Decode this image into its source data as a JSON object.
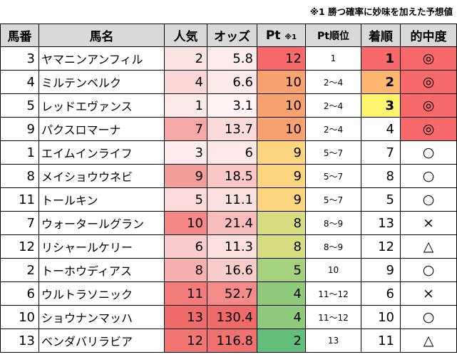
{
  "note": "※1 勝つ確率に妙味を加えた予想値",
  "headers": {
    "num": "馬番",
    "name": "馬名",
    "pop": "人気",
    "odds": "オッズ",
    "pt_main": "Pt",
    "pt_sup": "※1",
    "rank": "Pt順位",
    "finish": "着順",
    "hit": "的中度"
  },
  "rows": [
    {
      "num": "3",
      "name": "ヤマニンアンフィル",
      "pop": "2",
      "odds": "5.8",
      "pt": "12",
      "rank": "1",
      "finish": "1",
      "hit": "◎"
    },
    {
      "num": "4",
      "name": "ミルテンベルク",
      "pop": "4",
      "odds": "6.6",
      "pt": "10",
      "rank": "2～4",
      "finish": "2",
      "hit": "◎"
    },
    {
      "num": "5",
      "name": "レッドエヴァンス",
      "pop": "1",
      "odds": "3.1",
      "pt": "10",
      "rank": "2～4",
      "finish": "3",
      "hit": "◎"
    },
    {
      "num": "9",
      "name": "パクスロマーナ",
      "pop": "7",
      "odds": "13.7",
      "pt": "10",
      "rank": "2～4",
      "finish": "4",
      "hit": "◎"
    },
    {
      "num": "1",
      "name": "エイムインライフ",
      "pop": "3",
      "odds": "6",
      "pt": "9",
      "rank": "5～7",
      "finish": "7",
      "hit": "○"
    },
    {
      "num": "8",
      "name": "メイショウウネビ",
      "pop": "9",
      "odds": "18.5",
      "pt": "9",
      "rank": "5～7",
      "finish": "8",
      "hit": "○"
    },
    {
      "num": "11",
      "name": "トールキン",
      "pop": "5",
      "odds": "11.1",
      "pt": "9",
      "rank": "5～7",
      "finish": "5",
      "hit": "○"
    },
    {
      "num": "7",
      "name": "ウォータールグラン",
      "pop": "10",
      "odds": "21.4",
      "pt": "8",
      "rank": "8～9",
      "finish": "13",
      "hit": "×"
    },
    {
      "num": "12",
      "name": "リシャールケリー",
      "pop": "6",
      "odds": "11.3",
      "pt": "8",
      "rank": "8～9",
      "finish": "12",
      "hit": "△"
    },
    {
      "num": "2",
      "name": "トーホウディアス",
      "pop": "8",
      "odds": "16.6",
      "pt": "5",
      "rank": "10",
      "finish": "9",
      "hit": "○"
    },
    {
      "num": "6",
      "name": "ウルトラソニック",
      "pop": "11",
      "odds": "52.7",
      "pt": "4",
      "rank": "11～12",
      "finish": "6",
      "hit": "×"
    },
    {
      "num": "10",
      "name": "ショウナンマッハ",
      "pop": "13",
      "odds": "130.4",
      "pt": "4",
      "rank": "11～12",
      "finish": "10",
      "hit": "○"
    },
    {
      "num": "13",
      "name": "ベンダバリラビア",
      "pop": "12",
      "odds": "116.8",
      "pt": "2",
      "rank": "13",
      "finish": "11",
      "hit": "△"
    }
  ],
  "colors": {
    "header_bg": "#d9d9d9",
    "pop": [
      "#fbe3e3",
      "#fbd6d6",
      "#fbe9e9",
      "#f6a8a6",
      "#fdecec",
      "#f49e9c",
      "#fadcdc",
      "#f38886",
      "#f9cdcd",
      "#f6b1af",
      "#f17c7a",
      "#ee6b69",
      "#f17573"
    ],
    "odds": [
      "#fdecec",
      "#fce9e9",
      "#fff3f3",
      "#fadada",
      "#fce8e8",
      "#f8c8c8",
      "#fbe0e0",
      "#f7bcbc",
      "#fbdfdf",
      "#f9cccc",
      "#f38b8a",
      "#ee6b69",
      "#ef7170"
    ],
    "pt": [
      "#f8696b",
      "#f8a26f",
      "#f8a26f",
      "#f8a26f",
      "#fed680",
      "#fed680",
      "#fed680",
      "#d6dd80",
      "#d6dd80",
      "#a5d07e",
      "#8fca7c",
      "#8fca7c",
      "#63be7b"
    ],
    "finish": [
      "#f8696b",
      "#fdb56f",
      "#fdf56e",
      "",
      "",
      "",
      "",
      "",
      "",
      "",
      "",
      "",
      ""
    ],
    "hit": [
      "#f8696b",
      "#f8696b",
      "#f8696b",
      "#f8696b",
      "",
      "",
      "",
      "",
      "",
      "",
      "",
      "",
      ""
    ]
  }
}
